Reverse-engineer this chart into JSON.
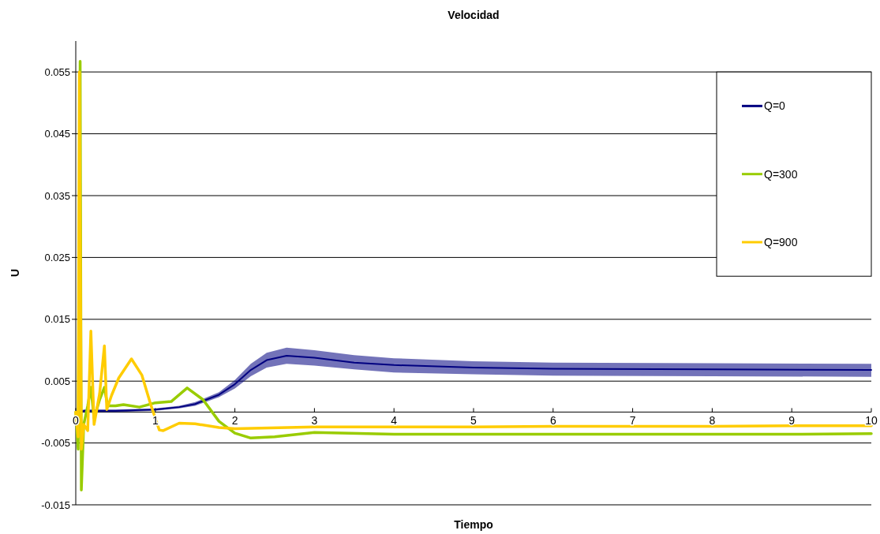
{
  "chart_data": {
    "type": "line",
    "title": "Velocidad",
    "xlabel": "Tiempo",
    "ylabel": "U",
    "xlim": [
      0,
      10
    ],
    "xticks": [
      0,
      1,
      2,
      3,
      4,
      5,
      6,
      7,
      8,
      9,
      10
    ],
    "ylim": [
      -0.015,
      0.06
    ],
    "yticks": [
      -0.015,
      -0.005,
      0.005,
      0.015,
      0.025,
      0.035,
      0.045,
      0.055
    ],
    "grid": "y",
    "legend": "top right",
    "marker": "none",
    "line_style": "solid",
    "series": [
      {
        "name": "Q=0",
        "color": "#000080",
        "x": [
          0,
          0.05,
          0.1,
          0.5,
          1,
          1.3,
          1.5,
          1.8,
          2,
          2.2,
          2.4,
          2.65,
          3,
          3.5,
          4,
          5,
          6,
          8,
          10
        ],
        "values": [
          0,
          0,
          0.0002,
          0.0002,
          0.0004,
          0.0008,
          0.0013,
          0.0028,
          0.0045,
          0.0068,
          0.0084,
          0.0091,
          0.0088,
          0.008,
          0.0076,
          0.0072,
          0.007,
          0.0069,
          0.0068
        ],
        "lower": [
          -0.0002,
          -0.0002,
          0,
          0,
          0.0002,
          0.0006,
          0.001,
          0.0024,
          0.0038,
          0.0058,
          0.0072,
          0.0078,
          0.0075,
          0.0069,
          0.0064,
          0.0061,
          0.0059,
          0.0058,
          0.0057
        ],
        "upper": [
          0.0002,
          0.0002,
          0.0004,
          0.0004,
          0.0006,
          0.001,
          0.0016,
          0.0032,
          0.0052,
          0.0078,
          0.0096,
          0.0104,
          0.01,
          0.0092,
          0.0087,
          0.0082,
          0.008,
          0.0079,
          0.0078
        ]
      },
      {
        "name": "Q=300",
        "color": "#99cc00",
        "x": [
          0,
          0.03,
          0.055,
          0.07,
          0.1,
          0.15,
          0.19,
          0.23,
          0.3,
          0.36,
          0.4,
          0.5,
          0.6,
          0.8,
          1,
          1.2,
          1.4,
          1.6,
          1.8,
          2,
          2.2,
          2.5,
          3,
          4,
          5,
          6,
          7,
          8,
          9,
          10
        ],
        "values": [
          0,
          -0.006,
          0.0567,
          -0.0126,
          -0.002,
          0.001,
          0.004,
          -0.001,
          0.002,
          0.004,
          0.001,
          0.001,
          0.0012,
          0.0008,
          0.0015,
          0.0017,
          0.0039,
          0.002,
          -0.0015,
          -0.0034,
          -0.0042,
          -0.004,
          -0.0033,
          -0.0036,
          -0.0036,
          -0.0036,
          -0.0036,
          -0.0036,
          -0.0036,
          -0.0035
        ]
      },
      {
        "name": "Q=900",
        "color": "#ffcc00",
        "x": [
          0,
          0.03,
          0.045,
          0.07,
          0.1,
          0.15,
          0.19,
          0.23,
          0.3,
          0.36,
          0.39,
          0.45,
          0.54,
          0.7,
          0.83,
          0.94,
          1.05,
          1.1,
          1.3,
          1.5,
          1.8,
          2,
          3,
          4,
          5,
          6,
          7,
          8,
          9,
          10
        ],
        "values": [
          0,
          -0.004,
          0.055,
          -0.006,
          -0.002,
          -0.003,
          0.0131,
          -0.002,
          0.003,
          0.0107,
          0.0004,
          0.0027,
          0.0055,
          0.0086,
          0.006,
          0.0013,
          -0.0029,
          -0.003,
          -0.0018,
          -0.0019,
          -0.0025,
          -0.0027,
          -0.0024,
          -0.0024,
          -0.0024,
          -0.0023,
          -0.0023,
          -0.0023,
          -0.0022,
          -0.0022
        ]
      }
    ]
  }
}
